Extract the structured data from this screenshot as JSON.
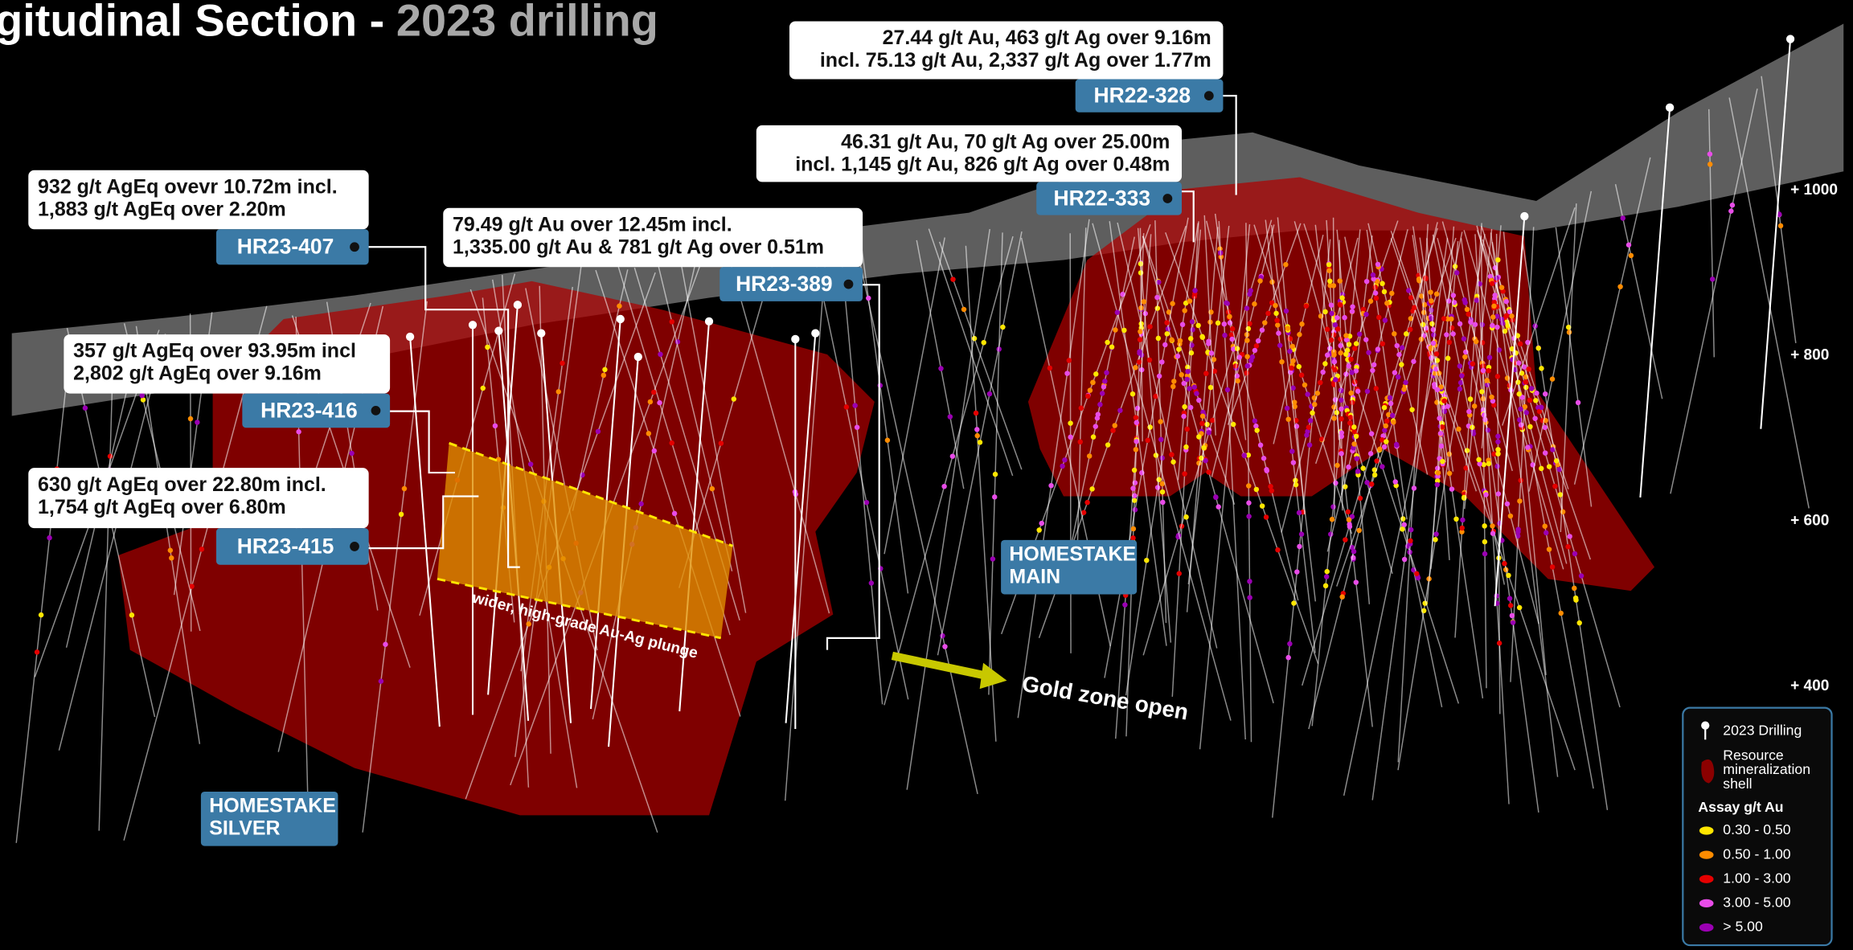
{
  "title": {
    "text": "gitudinal Section -",
    "highlight": "2023 drilling"
  },
  "callouts": [
    {
      "lines": [
        "27.44 g/t Au, 463 g/t Ag over 9.16m",
        "incl. 75.13 g/t Au, 2,337 g/t Ag over 1.77m"
      ],
      "hole": "HR22-328"
    },
    {
      "lines": [
        "46.31 g/t Au, 70 g/t Ag over 25.00m",
        "incl. 1,145 g/t Au, 826 g/t Ag over 0.48m"
      ],
      "hole": "HR22-333"
    },
    {
      "lines": [
        "932 g/t AgEq ovevr 10.72m incl.",
        "1,883 g/t AgEq over 2.20m"
      ],
      "hole": "HR23-407"
    },
    {
      "lines": [
        "79.49 g/t Au over 12.45m incl.",
        "1,335.00 g/t Au & 781 g/t Ag over 0.51m"
      ],
      "hole": "HR23-389"
    },
    {
      "lines": [
        "357 g/t AgEq over 93.95m incl",
        "2,802 g/t AgEq over 9.16m"
      ],
      "hole": "HR23-416"
    },
    {
      "lines": [
        "630 g/t AgEq over 22.80m incl.",
        "1,754 g/t AgEq over 6.80m"
      ],
      "hole": "HR23-415"
    }
  ],
  "zones": [
    {
      "lines": [
        "HOMESTAKE",
        "SILVER"
      ]
    },
    {
      "lines": [
        "HOMESTAKE",
        "MAIN"
      ]
    }
  ],
  "annotations": {
    "plunge": "wider, high-grade Au-Ag plunge",
    "open": "Gold zone open"
  },
  "elevations": [
    "+ 1000",
    "+ 800",
    "+ 600",
    "+ 400"
  ],
  "legend": {
    "drilling": "2023 Drilling",
    "shell": [
      "Resource",
      "mineralization",
      "shell"
    ],
    "assay_title": "Assay g/t Au",
    "assays": [
      {
        "label": "0.30 - 0.50",
        "color": "#ffe600"
      },
      {
        "label": "0.50 - 1.00",
        "color": "#ff8c00"
      },
      {
        "label": "1.00 - 3.00",
        "color": "#e50000"
      },
      {
        "label": "3.00 - 5.00",
        "color": "#e84ce8"
      },
      {
        "label": "> 5.00",
        "color": "#9b00b3"
      }
    ]
  }
}
